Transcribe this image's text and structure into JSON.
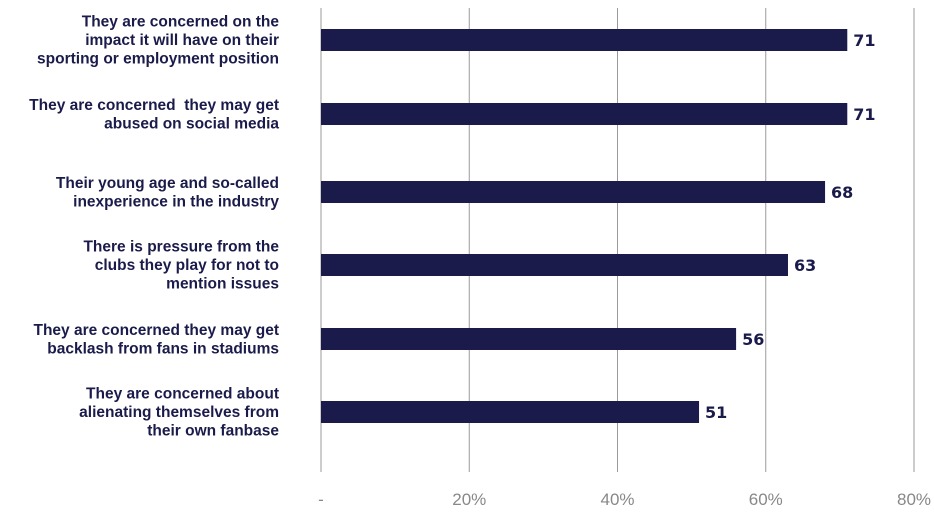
{
  "chart_data": {
    "type": "bar",
    "orientation": "horizontal",
    "title": "",
    "xlabel": "",
    "ylabel": "",
    "xlim": [
      0,
      80
    ],
    "bar_color": "#1b1b4b",
    "text_color": "#1b1b4b",
    "tick_color": "#888888",
    "grid": true,
    "categories": [
      [
        "They are concerned on the",
        "impact it will have on their",
        "sporting or employment position"
      ],
      [
        "They are concerned  they may get",
        "abused on social media"
      ],
      [
        "Their young age and so-called",
        "inexperience in the industry"
      ],
      [
        "There is pressure from the",
        "clubs they play for not to",
        "mention issues"
      ],
      [
        "They are concerned they may get",
        "backlash from fans in stadiums"
      ],
      [
        "They are concerned about",
        "alienating themselves from",
        "their own fanbase"
      ]
    ],
    "values": [
      71,
      71,
      68,
      63,
      56,
      51
    ],
    "value_labels": [
      "71",
      "71",
      "68",
      "63",
      "56",
      "51"
    ],
    "x_ticks": [
      0,
      20,
      40,
      60,
      80
    ],
    "x_tick_labels": [
      "-",
      "20%",
      "40%",
      "60%",
      "80%"
    ]
  }
}
